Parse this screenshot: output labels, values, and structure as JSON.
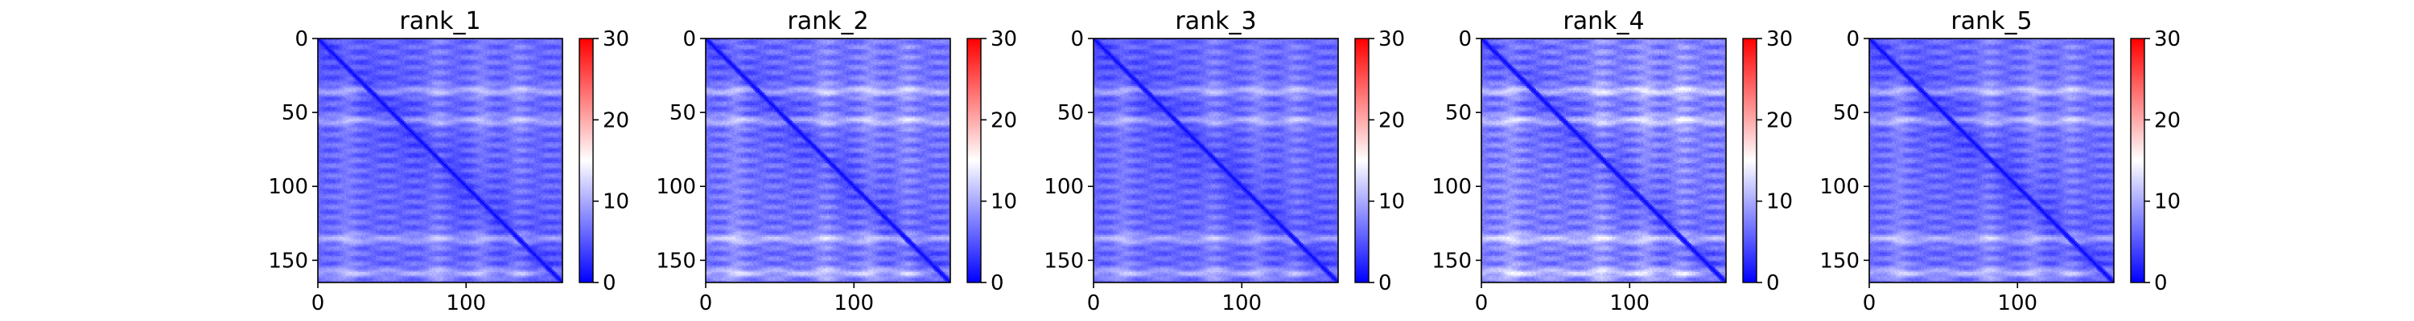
{
  "chart_data": [
    {
      "type": "heatmap",
      "title": "rank_1",
      "xlabel": "",
      "ylabel": "",
      "xlim": [
        0,
        165
      ],
      "ylim": [
        165,
        0
      ],
      "xticks": [
        0,
        100
      ],
      "yticks": [
        0,
        50,
        100,
        150
      ],
      "colorbar": {
        "min": 0,
        "max": 30,
        "ticks": [
          0,
          10,
          20,
          30
        ],
        "colormap": [
          "#0000ff",
          "#ffffff",
          "#ff0000"
        ],
        "center": 15
      },
      "value_pattern": "near-zero diagonal; off-diagonal values mostly 3-9 with light bands near rows 35, 55, 135, 158",
      "band_rows": [
        35,
        55,
        135,
        158
      ],
      "band_cols": [
        20,
        80,
        110,
        135
      ],
      "intensity": 1.0
    },
    {
      "type": "heatmap",
      "title": "rank_2",
      "xlabel": "",
      "ylabel": "",
      "xlim": [
        0,
        165
      ],
      "ylim": [
        165,
        0
      ],
      "xticks": [
        0,
        100
      ],
      "yticks": [
        0,
        50,
        100,
        150
      ],
      "colorbar": {
        "min": 0,
        "max": 30,
        "ticks": [
          0,
          10,
          20,
          30
        ],
        "colormap": [
          "#0000ff",
          "#ffffff",
          "#ff0000"
        ],
        "center": 15
      },
      "value_pattern": "near-zero diagonal; off-diagonal values mostly 3-9 with light bands near rows 35, 55, 135, 158",
      "band_rows": [
        35,
        55,
        135,
        158
      ],
      "band_cols": [
        20,
        80,
        110,
        135
      ],
      "intensity": 1.1
    },
    {
      "type": "heatmap",
      "title": "rank_3",
      "xlabel": "",
      "ylabel": "",
      "xlim": [
        0,
        165
      ],
      "ylim": [
        165,
        0
      ],
      "xticks": [
        0,
        100
      ],
      "yticks": [
        0,
        50,
        100,
        150
      ],
      "colorbar": {
        "min": 0,
        "max": 30,
        "ticks": [
          0,
          10,
          20,
          30
        ],
        "colormap": [
          "#0000ff",
          "#ffffff",
          "#ff0000"
        ],
        "center": 15
      },
      "value_pattern": "near-zero diagonal; off-diagonal values mostly 3-9 with light bands near rows 35, 55, 135, 158",
      "band_rows": [
        35,
        55,
        135,
        158
      ],
      "band_cols": [
        20,
        80,
        110,
        135
      ],
      "intensity": 1.0
    },
    {
      "type": "heatmap",
      "title": "rank_4",
      "xlabel": "",
      "ylabel": "",
      "xlim": [
        0,
        165
      ],
      "ylim": [
        165,
        0
      ],
      "xticks": [
        0,
        100
      ],
      "yticks": [
        0,
        50,
        100,
        150
      ],
      "colorbar": {
        "min": 0,
        "max": 30,
        "ticks": [
          0,
          10,
          20,
          30
        ],
        "colormap": [
          "#0000ff",
          "#ffffff",
          "#ff0000"
        ],
        "center": 15
      },
      "value_pattern": "near-zero diagonal; off-diagonal values mostly 3-10 with light bands near rows 35, 55, 135, 158",
      "band_rows": [
        35,
        55,
        135,
        158
      ],
      "band_cols": [
        20,
        80,
        110,
        135
      ],
      "intensity": 1.2
    },
    {
      "type": "heatmap",
      "title": "rank_5",
      "xlabel": "",
      "ylabel": "",
      "xlim": [
        0,
        165
      ],
      "ylim": [
        165,
        0
      ],
      "xticks": [
        0,
        100
      ],
      "yticks": [
        0,
        50,
        100,
        150
      ],
      "colorbar": {
        "min": 0,
        "max": 30,
        "ticks": [
          0,
          10,
          20,
          30
        ],
        "colormap": [
          "#0000ff",
          "#ffffff",
          "#ff0000"
        ],
        "center": 15
      },
      "value_pattern": "near-zero diagonal; off-diagonal values mostly 3-9 with light bands near rows 35, 55, 135, 158",
      "band_rows": [
        35,
        55,
        135,
        158
      ],
      "band_cols": [
        20,
        80,
        110,
        135
      ],
      "intensity": 1.05
    }
  ]
}
